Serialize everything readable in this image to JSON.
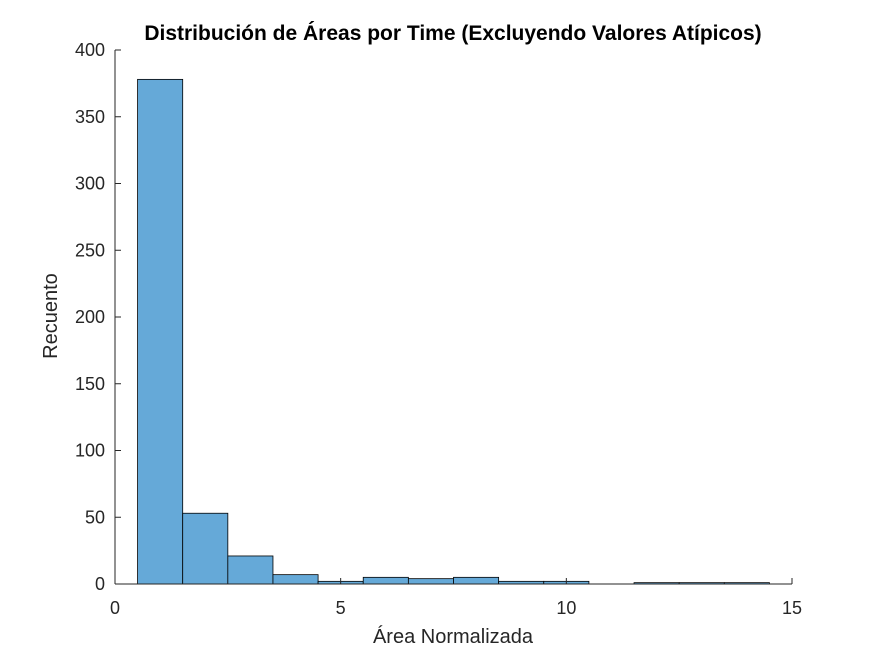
{
  "chart_data": {
    "type": "bar",
    "title": "Distribución de Áreas por Time (Excluyendo Valores Atípicos)",
    "xlabel": "Área Normalizada",
    "ylabel": "Recuento",
    "xlim": [
      0,
      15
    ],
    "ylim": [
      0,
      400
    ],
    "xticks": [
      0,
      5,
      10,
      15
    ],
    "yticks": [
      0,
      50,
      100,
      150,
      200,
      250,
      300,
      350,
      400
    ],
    "bin_width": 1,
    "bins": [
      {
        "start": 0.5,
        "end": 1.5,
        "count": 378
      },
      {
        "start": 1.5,
        "end": 2.5,
        "count": 53
      },
      {
        "start": 2.5,
        "end": 3.5,
        "count": 21
      },
      {
        "start": 3.5,
        "end": 4.5,
        "count": 7
      },
      {
        "start": 4.5,
        "end": 5.5,
        "count": 2
      },
      {
        "start": 5.5,
        "end": 6.5,
        "count": 5
      },
      {
        "start": 6.5,
        "end": 7.5,
        "count": 4
      },
      {
        "start": 7.5,
        "end": 8.5,
        "count": 5
      },
      {
        "start": 8.5,
        "end": 9.5,
        "count": 2
      },
      {
        "start": 9.5,
        "end": 10.5,
        "count": 2
      },
      {
        "start": 10.5,
        "end": 11.5,
        "count": 0
      },
      {
        "start": 11.5,
        "end": 12.5,
        "count": 1
      },
      {
        "start": 12.5,
        "end": 13.5,
        "count": 1
      },
      {
        "start": 13.5,
        "end": 14.5,
        "count": 1
      }
    ],
    "bar_color": "#65a9d8",
    "bar_edge_color": "#000000",
    "grid": false,
    "legend": "none"
  }
}
